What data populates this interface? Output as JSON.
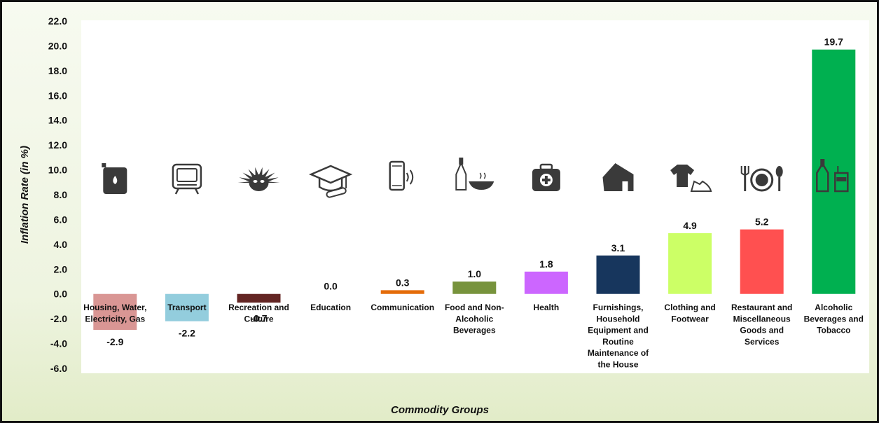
{
  "chart_data": {
    "type": "bar",
    "categories": [
      "Housing, Water, Electricity, Gas",
      "Transport",
      "Recreation and Culture",
      "Education",
      "Communication",
      "Food and Non-Alcoholic Beverages",
      "Health",
      "Furnishings, Household Equipment and Routine Maintenance of the House",
      "Clothing and Footwear",
      "Restaurant and Miscellaneous Goods and Services",
      "Alcoholic Beverages and Tobacco"
    ],
    "category_lines": [
      [
        "Housing, Water,",
        "Electricity, Gas"
      ],
      [
        "Transport"
      ],
      [
        "Recreation and",
        "Culture"
      ],
      [
        "Education"
      ],
      [
        "Communication"
      ],
      [
        "Food and Non-",
        "Alcoholic",
        "Beverages"
      ],
      [
        "Health"
      ],
      [
        "Furnishings,",
        "Household",
        "Equipment and",
        "Routine",
        "Maintenance of",
        "the House"
      ],
      [
        "Clothing and",
        "Footwear"
      ],
      [
        "Restaurant and",
        "Miscellaneous",
        "Goods and",
        "Services"
      ],
      [
        "Alcoholic",
        "Beverages and",
        "Tobacco"
      ]
    ],
    "values": [
      -2.9,
      -2.2,
      -0.7,
      0.0,
      0.3,
      1.0,
      1.8,
      3.1,
      4.9,
      5.2,
      19.7
    ],
    "value_labels": [
      "-2.9",
      "-2.2",
      "-0.7",
      "0.0",
      "0.3",
      "1.0",
      "1.8",
      "3.1",
      "4.9",
      "5.2",
      "19.7"
    ],
    "colors": [
      "#d99694",
      "#93cddd",
      "#632523",
      "#7f7f7f",
      "#e46c0a",
      "#77933c",
      "#cc66ff",
      "#17365d",
      "#ccff66",
      "#ff5050",
      "#00b050"
    ],
    "icons": [
      "fuel-can-icon",
      "tv-icon",
      "mask-icon",
      "graduation-cap-icon",
      "mobile-phone-icon",
      "bottle-and-bowl-icon",
      "first-aid-kit-icon",
      "house-icon",
      "shirt-and-shoe-icon",
      "fork-plate-spoon-icon",
      "bottle-and-glass-icon"
    ],
    "ylabel": "Inflation Rate (in %)",
    "xlabel": "Commodity Groups",
    "ylim": [
      -6.0,
      22.0
    ],
    "yticks": [
      "-6.0",
      "-4.0",
      "-2.0",
      "0.0",
      "2.0",
      "4.0",
      "6.0",
      "8.0",
      "10.0",
      "12.0",
      "14.0",
      "16.0",
      "18.0",
      "20.0",
      "22.0"
    ],
    "grid": false
  }
}
